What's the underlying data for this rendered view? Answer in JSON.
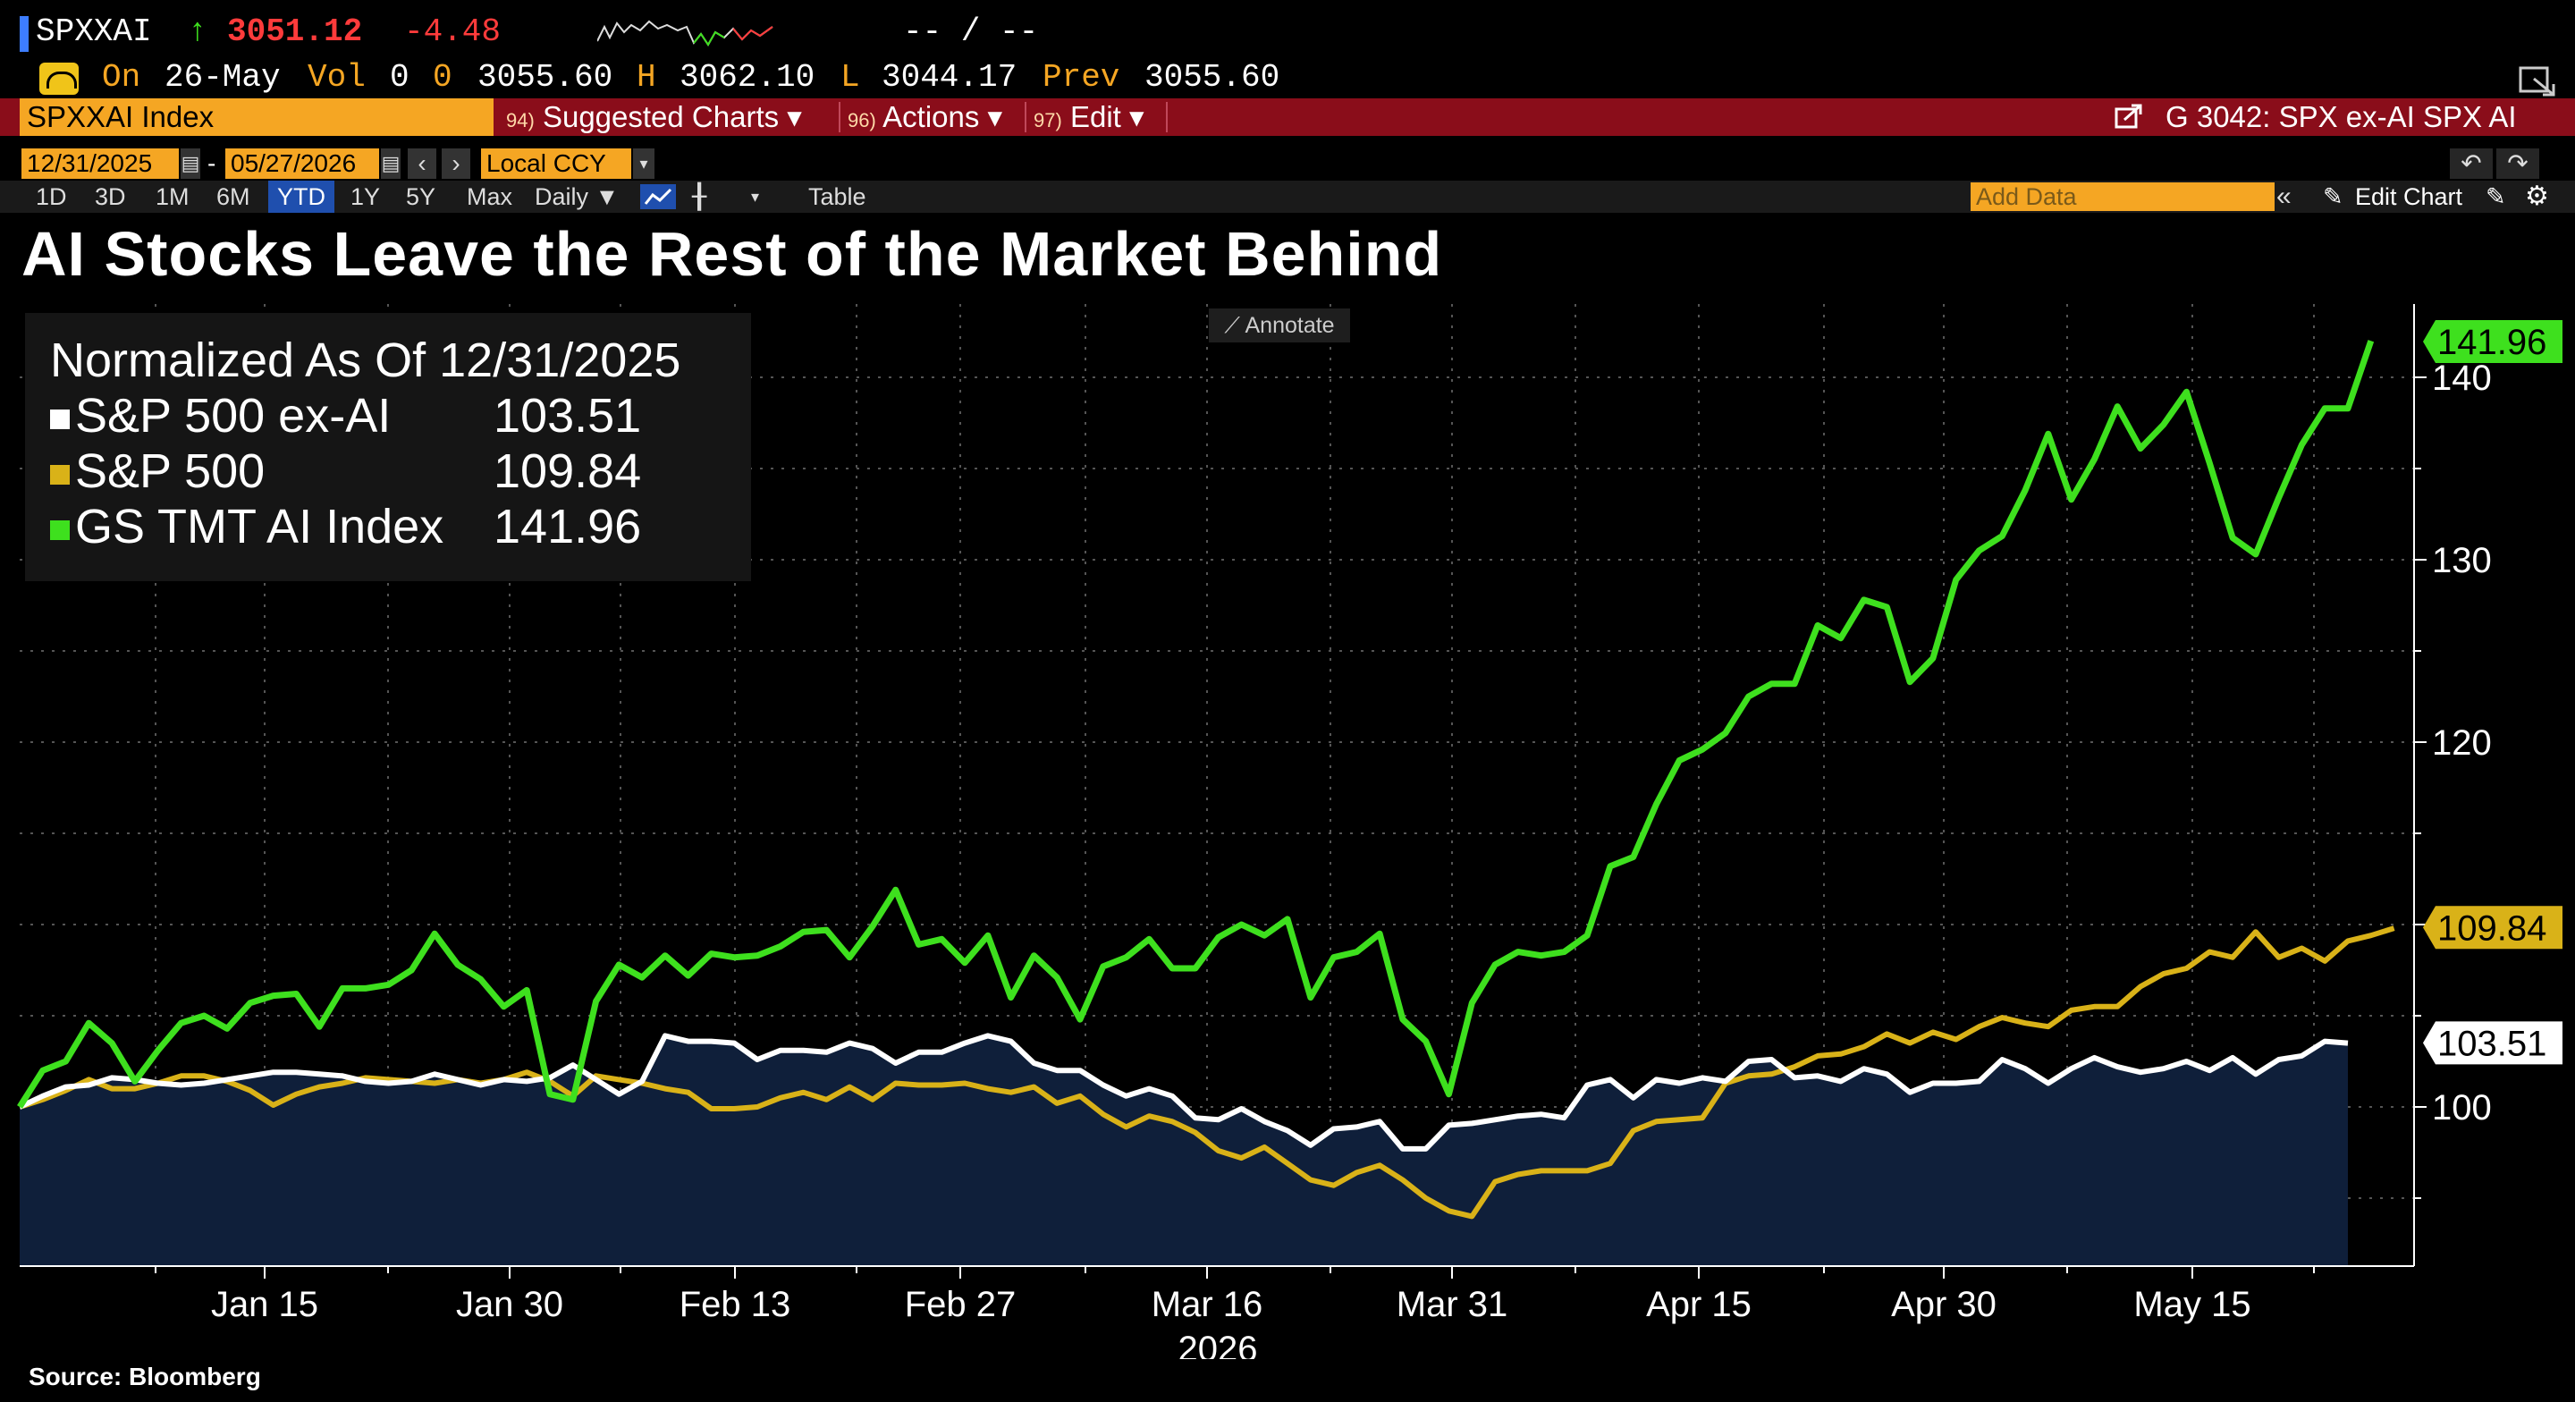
{
  "ticker": {
    "symbol": "SPXXAI",
    "arrow": "↑",
    "last": "3051.12",
    "change": "-4.48",
    "bid_ask": "-- / --"
  },
  "quote": {
    "on_label": "On",
    "date": "26-May",
    "vol_label": "Vol",
    "vol": "0",
    "vol2": "0",
    "open": "3055.60",
    "high_label": "H",
    "high": "3062.10",
    "low_label": "L",
    "low": "3044.17",
    "prev_label": "Prev",
    "prev": "3055.60"
  },
  "command_bar": {
    "security": "SPXXAI Index",
    "menus": [
      {
        "num": "94)",
        "label": "Suggested Charts ▾"
      },
      {
        "num": "96)",
        "label": "Actions ▾"
      },
      {
        "num": "97)",
        "label": "Edit ▾"
      }
    ],
    "chart_id": "G 3042: SPX ex-AI SPX AI"
  },
  "date_row": {
    "start": "12/31/2025",
    "dash": "-",
    "end": "05/27/2026",
    "currency": "Local CCY"
  },
  "timeframes": [
    "1D",
    "3D",
    "1M",
    "6M",
    "YTD",
    "1Y",
    "5Y",
    "Max"
  ],
  "timeframe_selected": "YTD",
  "frequency": "Daily ▼",
  "table_label": "Table",
  "add_data_placeholder": "Add Data",
  "edit_chart_label": "Edit Chart",
  "annotate_label": "Annotate",
  "source": "Source: Bloomberg",
  "colors": {
    "green": "#3ee01e",
    "gold": "#d9b218",
    "white": "#ffffff",
    "area": "#0f1f3a",
    "amber": "#f5a623",
    "red_bar": "#8a0d1a"
  },
  "chart_data": {
    "type": "line",
    "title": "AI Stocks Leave the Rest of the Market Behind",
    "legend_header": "Normalized As Of 12/31/2025",
    "legend_placement": "top-left",
    "grid": true,
    "ylim": [
      91.4,
      142.5
    ],
    "yticks": [
      100,
      120,
      130,
      140
    ],
    "x_start": "2025-12-31",
    "x_end": "2026-05-27",
    "x_tick_labels": [
      "Jan 15",
      "Jan 30",
      "Feb 13",
      "Feb 27",
      "Mar 16",
      "Mar 31",
      "Apr 15",
      "Apr 30",
      "May 15"
    ],
    "x_year_label": "2026",
    "series": [
      {
        "name": "S&P 500 ex-AI",
        "last": "103.51",
        "color": "#ffffff",
        "area": true,
        "values": [
          100.0,
          100.6,
          101.1,
          101.2,
          101.6,
          101.5,
          101.3,
          101.2,
          101.3,
          101.5,
          101.7,
          101.9,
          101.9,
          101.8,
          101.7,
          101.4,
          101.3,
          101.4,
          101.8,
          101.5,
          101.2,
          101.5,
          101.4,
          101.6,
          102.3,
          101.5,
          100.7,
          101.4,
          103.9,
          103.6,
          103.6,
          103.5,
          102.6,
          103.1,
          103.1,
          103.0,
          103.5,
          103.2,
          102.4,
          103.0,
          103.0,
          103.5,
          103.9,
          103.6,
          102.4,
          102.0,
          102.0,
          101.2,
          100.6,
          101.0,
          100.6,
          99.4,
          99.3,
          99.9,
          99.2,
          98.7,
          97.9,
          98.8,
          98.9,
          99.2,
          97.7,
          97.7,
          99.0,
          99.1,
          99.3,
          99.5,
          99.6,
          99.4,
          101.2,
          101.5,
          100.5,
          101.5,
          101.3,
          101.6,
          101.4,
          102.5,
          102.6,
          101.6,
          101.7,
          101.4,
          102.1,
          101.8,
          100.8,
          101.3,
          101.3,
          101.4,
          102.6,
          102.1,
          101.3,
          102.1,
          102.7,
          102.2,
          101.9,
          102.1,
          102.5,
          102.0,
          102.7,
          101.8,
          102.6,
          102.8,
          103.6,
          103.5
        ]
      },
      {
        "name": "S&P 500",
        "last": "109.84",
        "color": "#d9b218",
        "values": [
          100.0,
          100.4,
          100.9,
          101.5,
          101.0,
          101.0,
          101.3,
          101.7,
          101.7,
          101.4,
          100.9,
          100.1,
          100.7,
          101.1,
          101.3,
          101.6,
          101.5,
          101.4,
          101.3,
          101.5,
          101.3,
          101.5,
          101.9,
          101.4,
          100.6,
          101.7,
          101.5,
          101.3,
          101.0,
          100.8,
          99.9,
          99.9,
          100.0,
          100.5,
          100.8,
          100.4,
          101.1,
          100.4,
          101.3,
          101.2,
          101.2,
          101.3,
          101.0,
          100.8,
          101.1,
          100.2,
          100.6,
          99.6,
          98.9,
          99.5,
          99.2,
          98.6,
          97.6,
          97.2,
          97.8,
          96.9,
          96.0,
          95.7,
          96.4,
          96.8,
          96.0,
          95.0,
          94.3,
          94.0,
          95.9,
          96.3,
          96.5,
          96.5,
          96.5,
          96.9,
          98.7,
          99.2,
          99.3,
          99.4,
          101.3,
          101.7,
          101.8,
          102.2,
          102.8,
          102.9,
          103.3,
          104.0,
          103.5,
          104.1,
          103.7,
          104.4,
          104.9,
          104.6,
          104.4,
          105.3,
          105.5,
          105.5,
          106.6,
          107.3,
          107.6,
          108.5,
          108.2,
          109.6,
          108.2,
          108.7,
          108.0,
          109.1,
          109.4,
          109.8
        ]
      },
      {
        "name": "GS TMT AI Index",
        "last": "141.96",
        "color": "#3ee01e",
        "values": [
          100.0,
          102.0,
          102.5,
          104.6,
          103.5,
          101.4,
          103.1,
          104.6,
          105.0,
          104.3,
          105.7,
          106.1,
          106.2,
          104.4,
          106.5,
          106.5,
          106.7,
          107.5,
          109.5,
          107.8,
          107.0,
          105.5,
          106.4,
          100.7,
          100.4,
          105.8,
          107.8,
          107.1,
          108.3,
          107.2,
          108.4,
          108.2,
          108.3,
          108.8,
          109.6,
          109.7,
          108.2,
          109.9,
          111.9,
          108.9,
          109.2,
          107.9,
          109.4,
          106.0,
          108.3,
          107.1,
          104.8,
          107.7,
          108.2,
          109.2,
          107.6,
          107.6,
          109.3,
          110.0,
          109.4,
          110.3,
          106.0,
          108.2,
          108.5,
          109.5,
          104.8,
          103.6,
          100.7,
          105.7,
          107.8,
          108.5,
          108.3,
          108.5,
          109.4,
          113.2,
          113.7,
          116.6,
          119.0,
          119.6,
          120.5,
          122.5,
          123.2,
          123.2,
          126.4,
          125.7,
          127.8,
          127.4,
          123.3,
          124.6,
          128.9,
          130.5,
          131.3,
          133.8,
          136.9,
          133.3,
          135.5,
          138.4,
          136.1,
          137.4,
          139.2,
          135.3,
          131.2,
          130.3,
          133.4,
          136.3,
          138.3,
          138.3,
          142.0
        ]
      }
    ]
  }
}
